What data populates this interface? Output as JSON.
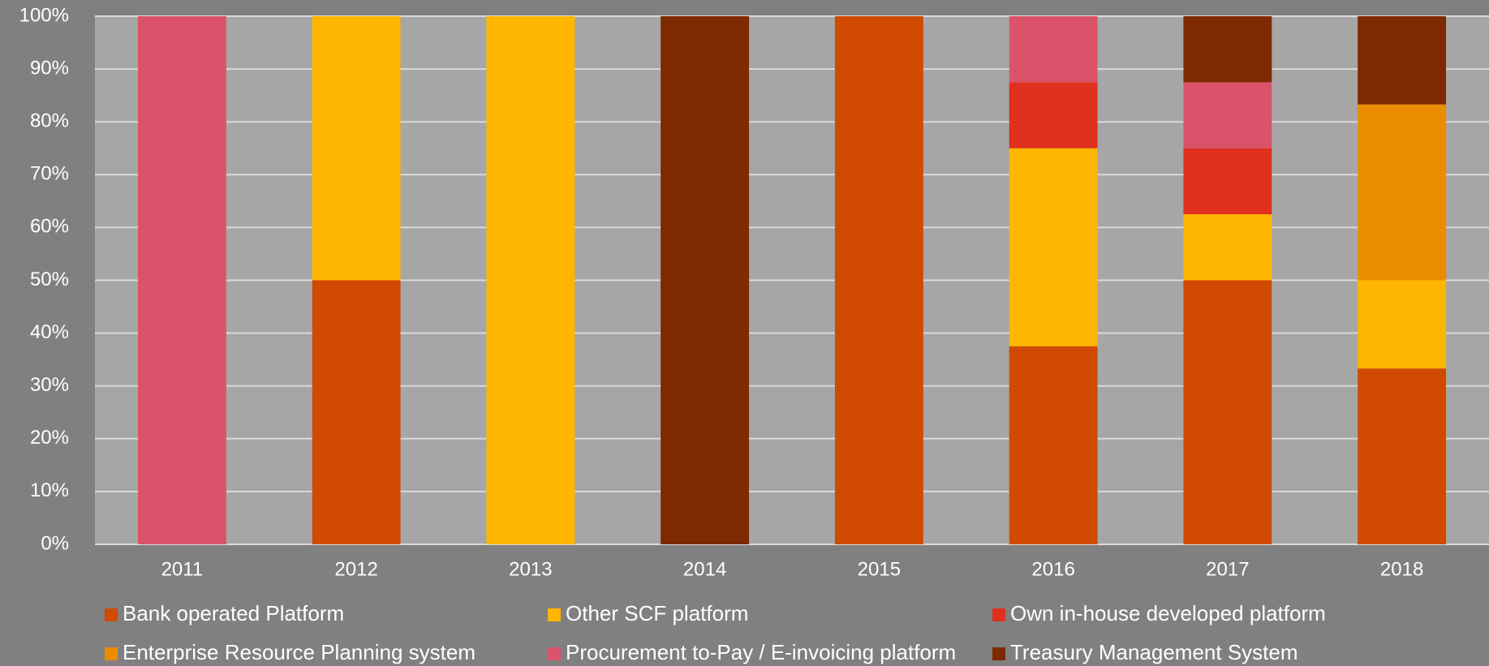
{
  "chart_data": {
    "type": "stacked_bar",
    "categories": [
      "2011",
      "2012",
      "2013",
      "2014",
      "2015",
      "2016",
      "2017",
      "2018"
    ],
    "series": [
      {
        "name": "Bank operated Platform",
        "color": "#d04a02",
        "values": [
          0,
          50,
          0,
          0,
          100,
          37.5,
          50,
          33.3
        ]
      },
      {
        "name": "Other SCF platform",
        "color": "#ffb600",
        "values": [
          0,
          50,
          100,
          0,
          0,
          37.5,
          12.5,
          16.7
        ]
      },
      {
        "name": "Own in-house developed platform",
        "color": "#e0301e",
        "values": [
          0,
          0,
          0,
          0,
          0,
          12.5,
          12.5,
          0
        ]
      },
      {
        "name": "Enterprise Resource Planning system",
        "color": "#eb8c00",
        "values": [
          0,
          0,
          0,
          0,
          0,
          0,
          0,
          33.3
        ]
      },
      {
        "name": "Procurement to-Pay / E-invoicing platform",
        "color": "#db536a",
        "values": [
          100,
          0,
          0,
          0,
          0,
          12.5,
          12.5,
          0
        ]
      },
      {
        "name": "Treasury Management System",
        "color": "#7d2a00",
        "values": [
          0,
          0,
          0,
          100,
          0,
          0,
          12.5,
          16.7
        ]
      }
    ],
    "ylim": [
      0,
      100
    ],
    "yticks": [
      {
        "value": 0,
        "label": "0%"
      },
      {
        "value": 10,
        "label": "10%"
      },
      {
        "value": 20,
        "label": "20%"
      },
      {
        "value": 30,
        "label": "30%"
      },
      {
        "value": 40,
        "label": "40%"
      },
      {
        "value": 50,
        "label": "50%"
      },
      {
        "value": 60,
        "label": "60%"
      },
      {
        "value": 70,
        "label": "70%"
      },
      {
        "value": 80,
        "label": "80%"
      },
      {
        "value": 90,
        "label": "90%"
      },
      {
        "value": 100,
        "label": "100%"
      }
    ],
    "grid": true,
    "legend": "bottom"
  }
}
